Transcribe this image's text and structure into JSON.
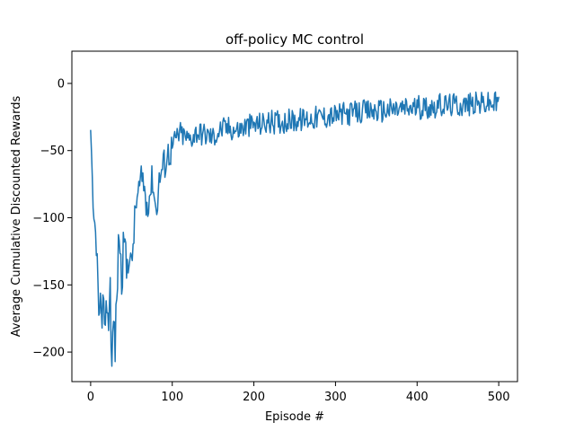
{
  "chart_data": {
    "type": "line",
    "title": "off-policy MC control",
    "xlabel": "Episode #",
    "ylabel": "Average Cumulative Discounted Rewards",
    "xlim": [
      -23,
      523
    ],
    "ylim": [
      -222,
      24
    ],
    "xticks": [
      0,
      100,
      200,
      300,
      400,
      500
    ],
    "yticks": [
      -200,
      -150,
      -100,
      -50,
      0
    ],
    "xtick_labels": [
      "0",
      "100",
      "200",
      "300",
      "400",
      "500"
    ],
    "ytick_labels": [
      "−200",
      "−150",
      "−100",
      "−50",
      "0"
    ],
    "grid": false,
    "legend": "none",
    "series": [
      {
        "color": "#1f77b4",
        "keypoints": [
          [
            0,
            -35
          ],
          [
            3,
            -97
          ],
          [
            6,
            -112
          ],
          [
            8,
            -130
          ],
          [
            10,
            -176
          ],
          [
            12,
            -160
          ],
          [
            14,
            -190
          ],
          [
            16,
            -150
          ],
          [
            18,
            -185
          ],
          [
            20,
            -160
          ],
          [
            22,
            -178
          ],
          [
            24,
            -150
          ],
          [
            26,
            -212
          ],
          [
            28,
            -175
          ],
          [
            30,
            -195
          ],
          [
            32,
            -160
          ],
          [
            35,
            -107
          ],
          [
            38,
            -150
          ],
          [
            41,
            -110
          ],
          [
            44,
            -140
          ],
          [
            47,
            -125
          ],
          [
            50,
            -138
          ],
          [
            53,
            -110
          ],
          [
            56,
            -88
          ],
          [
            60,
            -78
          ],
          [
            64,
            -70
          ],
          [
            68,
            -90
          ],
          [
            72,
            -83
          ],
          [
            76,
            -70
          ],
          [
            80,
            -95
          ],
          [
            85,
            -68
          ],
          [
            90,
            -60
          ],
          [
            95,
            -52
          ],
          [
            100,
            -48
          ],
          [
            105,
            -40
          ],
          [
            110,
            -37
          ],
          [
            120,
            -42
          ],
          [
            130,
            -36
          ],
          [
            140,
            -38
          ],
          [
            150,
            -40
          ],
          [
            160,
            -34
          ],
          [
            170,
            -33
          ],
          [
            180,
            -35
          ],
          [
            190,
            -32
          ],
          [
            200,
            -31
          ],
          [
            220,
            -29
          ],
          [
            240,
            -28
          ],
          [
            260,
            -27
          ],
          [
            280,
            -25
          ],
          [
            300,
            -24
          ],
          [
            320,
            -22
          ],
          [
            340,
            -21
          ],
          [
            360,
            -20
          ],
          [
            380,
            -19
          ],
          [
            400,
            -18
          ],
          [
            420,
            -17
          ],
          [
            440,
            -16
          ],
          [
            460,
            -16
          ],
          [
            480,
            -15
          ],
          [
            500,
            -15
          ]
        ]
      }
    ]
  }
}
